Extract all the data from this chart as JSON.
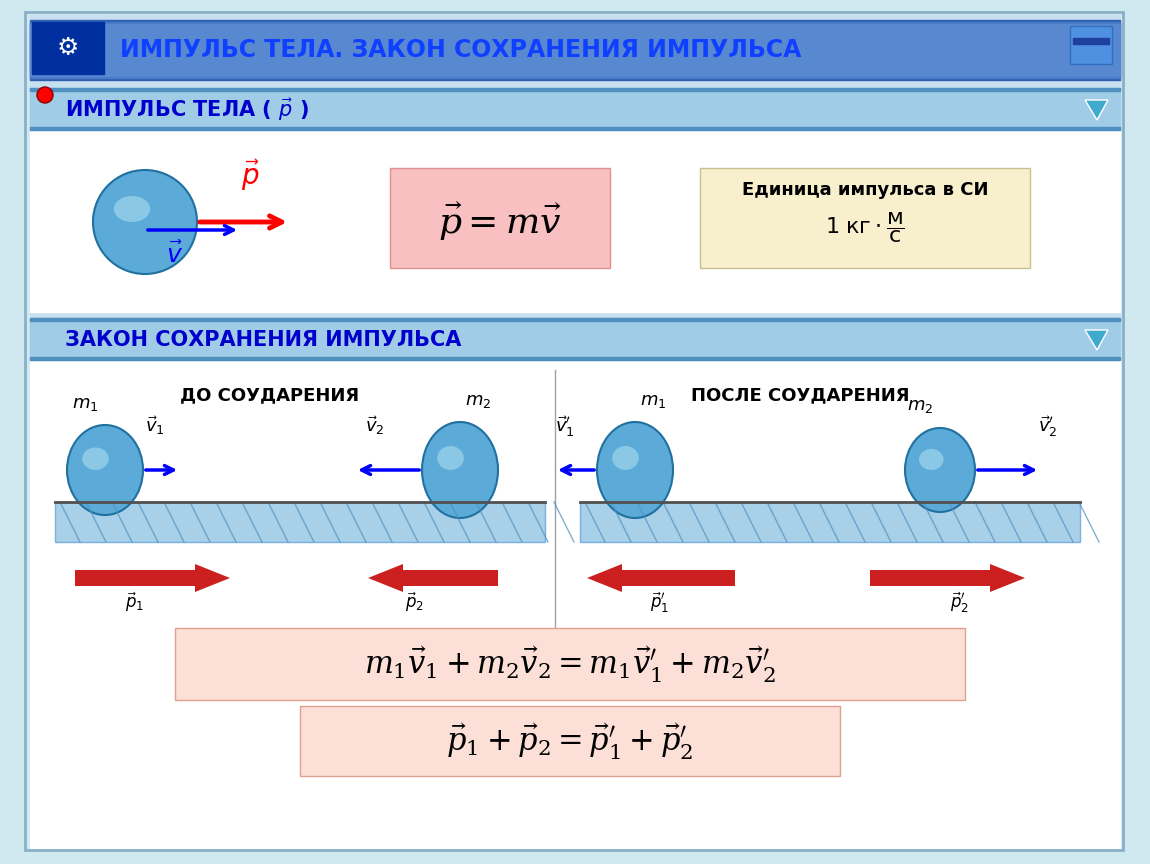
{
  "bg_color": "#d0e8f0",
  "title_bar_color": "#2060c0",
  "title_text": "ИМПУЛЬС ТЕЛА. ЗАКОН СОХРАНЕНИЯ ИМПУЛЬСА",
  "title_text_color": "#0040ff",
  "title_bar_bg": "#b8d8f0",
  "section1_text": "ИМПУЛЬС ТЕЛА ( ⃗p )",
  "section2_text": "ЗАКОН СОХРАНЕНИЯ ИМПУЛЬСА",
  "section_bar_color": "#90c8e8",
  "section_text_color": "#0000cc",
  "formula_box_color": "#f8c8c8",
  "unit_box_color": "#f8f0d0",
  "before_label": "ДО СОУДАРЕНИЯ",
  "after_label": "ПОСЛЕ СОУДАРЕНИЯ",
  "formula1": "$m_1 \\vec{v}_1 + m_2 \\vec{v}_2 = m_1 \\vec{v}_1^{\\prime} + m_2 \\vec{v}_2^{\\prime}$",
  "formula2": "$\\vec{p}_1 + \\vec{p}_2 = \\vec{p}_1^{\\prime} + \\vec{p}_2^{\\prime}$",
  "impulse_formula": "$\\vec{p} = m\\vec{v}$",
  "unit_title": "Единица импульса в СИ",
  "unit_formula": "$1 \\; \\text{кг} \\cdot \\dfrac{\\text{м}}{\\text{с}}$"
}
